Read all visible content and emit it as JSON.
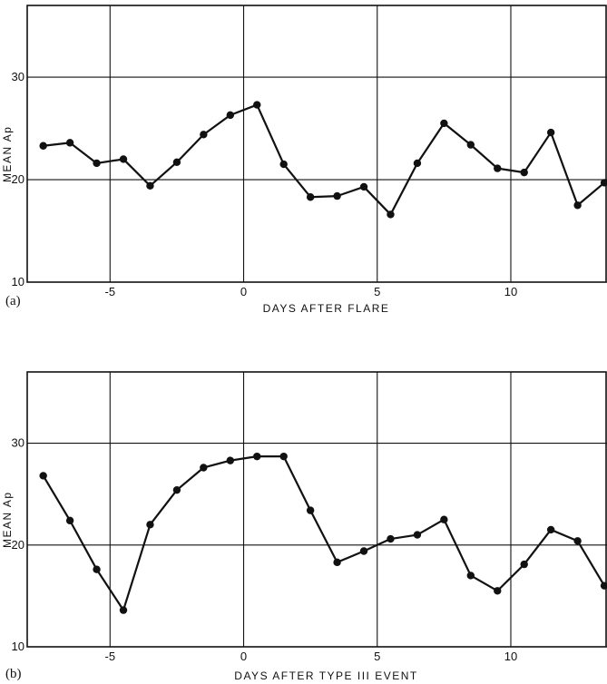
{
  "chart_data": [
    {
      "type": "line",
      "panel_label": "(a)",
      "xlabel": "DAYS AFTER FLARE",
      "ylabel": "MEAN Ap",
      "xlim": [
        -8.1,
        13.6
      ],
      "ylim": [
        10,
        37
      ],
      "xticks": [
        -5,
        0,
        5,
        10
      ],
      "xtick_labels": [
        "-5",
        "0",
        "5",
        "10"
      ],
      "yticks": [
        10,
        20,
        30
      ],
      "ytick_labels": [
        "10",
        "20",
        "30"
      ],
      "grid": true,
      "x": [
        -7.5,
        -6.5,
        -5.5,
        -4.5,
        -3.5,
        -2.5,
        -1.5,
        -0.5,
        0.5,
        1.5,
        2.5,
        3.5,
        4.5,
        5.5,
        6.5,
        7.5,
        8.5,
        9.5,
        10.5,
        11.5,
        12.5,
        13.5
      ],
      "y": [
        23.3,
        23.6,
        21.6,
        22.0,
        19.4,
        21.7,
        24.4,
        26.3,
        27.3,
        21.5,
        18.3,
        18.4,
        19.3,
        16.6,
        21.6,
        25.5,
        23.4,
        21.1,
        20.7,
        24.6,
        17.5,
        19.7
      ]
    },
    {
      "type": "line",
      "panel_label": "(b)",
      "xlabel": "DAYS AFTER TYPE III EVENT",
      "ylabel": "MEAN Ap",
      "xlim": [
        -8.1,
        13.6
      ],
      "ylim": [
        10,
        37
      ],
      "xticks": [
        -5,
        0,
        5,
        10
      ],
      "xtick_labels": [
        "-5",
        "0",
        "5",
        "10"
      ],
      "yticks": [
        10,
        20,
        30
      ],
      "ytick_labels": [
        "10",
        "20",
        "30"
      ],
      "grid": true,
      "x": [
        -7.5,
        -6.5,
        -5.5,
        -4.5,
        -3.5,
        -2.5,
        -1.5,
        -0.5,
        0.5,
        1.5,
        2.5,
        3.5,
        4.5,
        5.5,
        6.5,
        7.5,
        8.5,
        9.5,
        10.5,
        11.5,
        12.5,
        13.5
      ],
      "y": [
        26.8,
        22.4,
        17.6,
        13.6,
        22.0,
        25.4,
        27.6,
        28.3,
        28.7,
        28.7,
        23.4,
        18.3,
        19.4,
        20.6,
        21.0,
        22.5,
        17.0,
        15.5,
        18.1,
        21.5,
        20.4,
        16.0
      ]
    }
  ]
}
